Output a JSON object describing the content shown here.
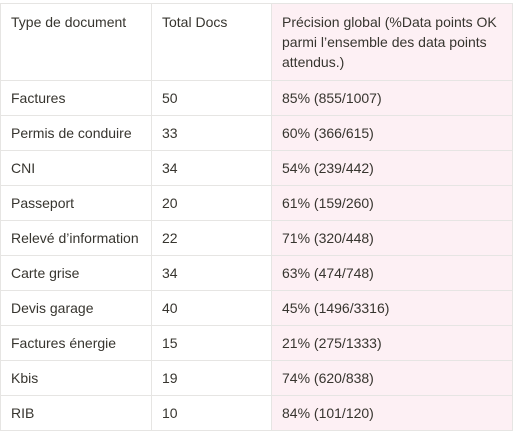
{
  "table": {
    "headers": [
      "Type de document",
      "Total Docs",
      "Précision global  (%Data points OK parmi l’ensemble des data points attendus.)"
    ],
    "rows": [
      [
        "Factures",
        "50",
        "85% (855/1007)"
      ],
      [
        "Permis de conduire",
        "33",
        "60% (366/615)"
      ],
      [
        "CNI",
        "34",
        "54% (239/442)"
      ],
      [
        "Passeport",
        "20",
        "61% (159/260)"
      ],
      [
        "Relevé d’information",
        "22",
        "71% (320/448)"
      ],
      [
        "Carte grise",
        "34",
        "63% (474/748)"
      ],
      [
        "Devis garage",
        "40",
        "45% (1496/3316)"
      ],
      [
        "Factures énergie",
        "15",
        "21% (275/1333)"
      ],
      [
        "Kbis",
        "19",
        "74% (620/838)"
      ],
      [
        "RIB",
        "10",
        "84% (101/120)"
      ]
    ],
    "highlight_color": "#fdf0f4",
    "border_color": "#e6e5e3",
    "text_color": "#37352f"
  }
}
